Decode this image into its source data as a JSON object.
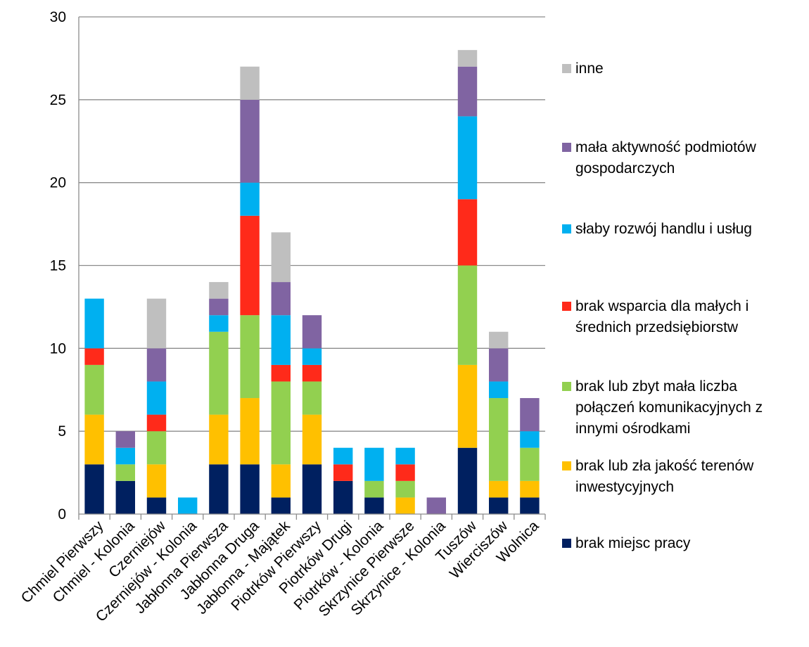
{
  "chart_data": {
    "type": "bar",
    "stacked": true,
    "categories": [
      "Chmiel Pierwszy",
      "Chmiel - Kolonia",
      "Czerniejów",
      "Czerniejów - Kolonia",
      "Jabłonna Pierwsza",
      "Jabłonna Druga",
      "Jabłonna - Majątek",
      "Piotrków Pierwszy",
      "Piotrków Drugi",
      "Piotrków - Kolonia",
      "Skrzynice Pierwsze",
      "Skrzynice - Kolonia",
      "Tuszów",
      "Wierciszów",
      "Wolnica"
    ],
    "series": [
      {
        "name": "brak miejsc pracy",
        "color": "#002060",
        "values": [
          3,
          2,
          1,
          0,
          3,
          3,
          1,
          3,
          2,
          1,
          0,
          0,
          4,
          1,
          1
        ]
      },
      {
        "name": "brak lub zła jakość terenów inwestycyjnych",
        "color": "#FFC000",
        "values": [
          3,
          0,
          2,
          0,
          3,
          4,
          2,
          3,
          0,
          0,
          1,
          0,
          5,
          1,
          1
        ]
      },
      {
        "name": "brak lub zbyt mała liczba połączeń komunikacyjnych z innymi ośrodkami",
        "color": "#92D050",
        "values": [
          3,
          1,
          2,
          0,
          5,
          5,
          5,
          2,
          0,
          1,
          1,
          0,
          6,
          5,
          2
        ]
      },
      {
        "name": "brak wsparcia dla małych i średnich przedsiębiorstw",
        "color": "#FF2A1A",
        "values": [
          1,
          0,
          1,
          0,
          0,
          6,
          1,
          1,
          1,
          0,
          1,
          0,
          4,
          0,
          0
        ]
      },
      {
        "name": "słaby rozwój handlu i usług",
        "color": "#00B0F0",
        "values": [
          3,
          1,
          2,
          1,
          1,
          2,
          3,
          1,
          1,
          2,
          1,
          0,
          5,
          1,
          1
        ]
      },
      {
        "name": "mała aktywność podmiotów gospodarczych",
        "color": "#8064A2",
        "values": [
          0,
          1,
          2,
          0,
          1,
          5,
          2,
          2,
          0,
          0,
          0,
          1,
          3,
          2,
          2
        ]
      },
      {
        "name": "inne",
        "color": "#BFBFBF",
        "values": [
          0,
          0,
          3,
          0,
          1,
          2,
          3,
          0,
          0,
          0,
          0,
          0,
          1,
          1,
          0
        ]
      }
    ],
    "ylim": [
      0,
      30
    ],
    "yticks": [
      0,
      5,
      10,
      15,
      20,
      25,
      30
    ],
    "grid": true,
    "legend_position": "right",
    "legend_order": [
      {
        "lines": [
          "inne"
        ]
      },
      {
        "lines": [
          "mała aktywność podmiotów",
          "gospodarczych"
        ]
      },
      {
        "lines": [
          "słaby rozwój handlu i usług"
        ]
      },
      {
        "lines": [
          "brak wsparcia dla małych i",
          "średnich przedsiębiorstw"
        ]
      },
      {
        "lines": [
          "brak lub zbyt mała liczba",
          "połączeń komunikacyjnych z",
          "innymi ośrodkami"
        ]
      },
      {
        "lines": [
          "brak lub zła jakość terenów",
          "inwestycyjnych"
        ]
      },
      {
        "lines": [
          "brak miejsc pracy"
        ]
      }
    ],
    "title": "",
    "xlabel": "",
    "ylabel": ""
  }
}
